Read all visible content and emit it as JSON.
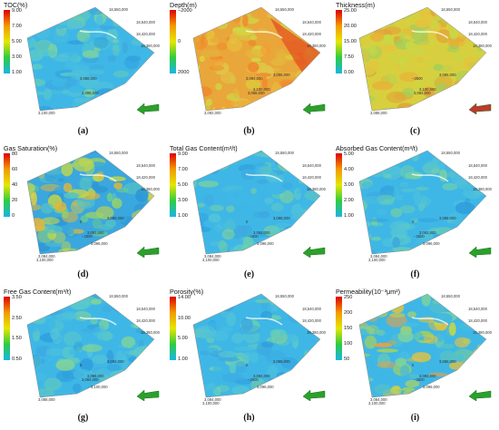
{
  "panels": [
    {
      "title": "TOC(%)",
      "ticks": [
        "9.00",
        "7.00",
        "5.00",
        "3.00",
        "1.00"
      ],
      "caption": "(a)",
      "colors": [
        "#e00000",
        "#f39a00",
        "#e6e600",
        "#2ecc40",
        "#17b6e8"
      ],
      "map": "cool",
      "arrow": "#2aa12a",
      "coords": [
        "18,550,000",
        "18,540,000",
        "18,420,000",
        "18,380,000",
        "3,088,000",
        "3,096,000",
        "3,100,000"
      ]
    },
    {
      "title": "Depth(m)",
      "ticks": [
        "−2000",
        "0",
        "2000"
      ],
      "caption": "(b)",
      "colors": [
        "#e00000",
        "#f39a00",
        "#e6e600",
        "#2ecc40",
        "#17b6e8"
      ],
      "map": "depth",
      "arrow": "#2aa12a",
      "coords": [
        "18,550,000",
        "18,540,000",
        "18,420,000",
        "18,380,000",
        "3,084,000",
        "3,088,000",
        "3,092,000",
        "3,096,000",
        "3,100,000"
      ]
    },
    {
      "title": "Thickness(m)",
      "ticks": [
        "25.00",
        "20.00",
        "15.00",
        "7.50",
        "0.00"
      ],
      "caption": "(c)",
      "colors": [
        "#e00000",
        "#f39a00",
        "#e6e600",
        "#2ecc40",
        "#17b6e8"
      ],
      "map": "thick",
      "arrow": "#c0392b",
      "coords": [
        "18,550,000",
        "18,540,000",
        "18,420,000",
        "18,380,000",
        "−2500",
        "3,084,000",
        "3,088,000",
        "3,096,000",
        "3,100,000"
      ]
    },
    {
      "title": "Gas Saturation(%)",
      "ticks": [
        "80",
        "60",
        "40",
        "20",
        "0"
      ],
      "caption": "(d)",
      "colors": [
        "#e00000",
        "#f39a00",
        "#e6e600",
        "#2ecc40",
        "#17b6e8"
      ],
      "map": "sat",
      "arrow": "#2aa12a",
      "coords": [
        "18,550,000",
        "18,540,000",
        "18,420,000",
        "18,380,000",
        "0",
        "−2500",
        "3,084,000",
        "3,088,000",
        "3,092,000",
        "3,096,000",
        "3,100,000"
      ]
    },
    {
      "title": "Total Gas Content(m³/t)",
      "ticks": [
        "9.00",
        "7.00",
        "5.00",
        "3.00",
        "1.00"
      ],
      "caption": "(e)",
      "colors": [
        "#e00000",
        "#f39a00",
        "#e6e600",
        "#2ecc40",
        "#17b6e8"
      ],
      "map": "cool",
      "arrow": "#2aa12a",
      "coords": [
        "18,550,000",
        "18,540,000",
        "18,420,000",
        "18,380,000",
        "0",
        "−2500",
        "3,084,000",
        "3,088,000",
        "3,092,000",
        "3,096,000",
        "3,100,000"
      ]
    },
    {
      "title": "Absorbed Gas Content(m³/t)",
      "ticks": [
        "5.00",
        "4.00",
        "3.00",
        "2.00",
        "1.00"
      ],
      "caption": "(f)",
      "colors": [
        "#e00000",
        "#f39a00",
        "#e6e600",
        "#2ecc40",
        "#17b6e8"
      ],
      "map": "cool",
      "arrow": "#2aa12a",
      "coords": [
        "18,550,000",
        "18,540,000",
        "18,420,000",
        "18,380,000",
        "0",
        "−2500",
        "3,084,000",
        "3,088,000",
        "3,092,000",
        "3,096,000",
        "3,100,000"
      ]
    },
    {
      "title": "Free Gas Content(m³/t)",
      "ticks": [
        "3.50",
        "2.50",
        "1.50",
        "0.50"
      ],
      "caption": "(g)",
      "colors": [
        "#e00000",
        "#f39a00",
        "#e6e600",
        "#2ecc40",
        "#17b6e8"
      ],
      "map": "cool",
      "arrow": "#2aa12a",
      "coords": [
        "18,550,000",
        "18,540,000",
        "18,420,000",
        "18,380,000",
        "0",
        "3,084,000",
        "3,088,000",
        "3,092,000",
        "3,096,000",
        "3,100,000"
      ]
    },
    {
      "title": "Porosity(%)",
      "ticks": [
        "14.00",
        "10.00",
        "5.00",
        "1.00"
      ],
      "caption": "(h)",
      "colors": [
        "#e00000",
        "#f39a00",
        "#e6e600",
        "#2ecc40",
        "#17b6e8"
      ],
      "map": "cool",
      "arrow": "#2aa12a",
      "coords": [
        "18,550,000",
        "18,540,000",
        "18,420,000",
        "18,380,000",
        "0",
        "−2500",
        "3,084,000",
        "3,088,000",
        "3,092,000",
        "3,096,000",
        "3,100,000"
      ]
    },
    {
      "title": "Permeability(10⁻³μm²)",
      "ticks": [
        "250",
        "200",
        "150",
        "100",
        "50"
      ],
      "caption": "(i)",
      "colors": [
        "#e00000",
        "#f39a00",
        "#e6e600",
        "#2ecc40",
        "#17b6e8"
      ],
      "map": "perm",
      "arrow": "#2aa12a",
      "coords": [
        "18,550,000",
        "18,540,000",
        "18,420,000",
        "18,380,000",
        "0",
        "−2500",
        "3,084,000",
        "3,088,000",
        "3,092,000",
        "3,096,000",
        "3,100,000"
      ]
    }
  ]
}
